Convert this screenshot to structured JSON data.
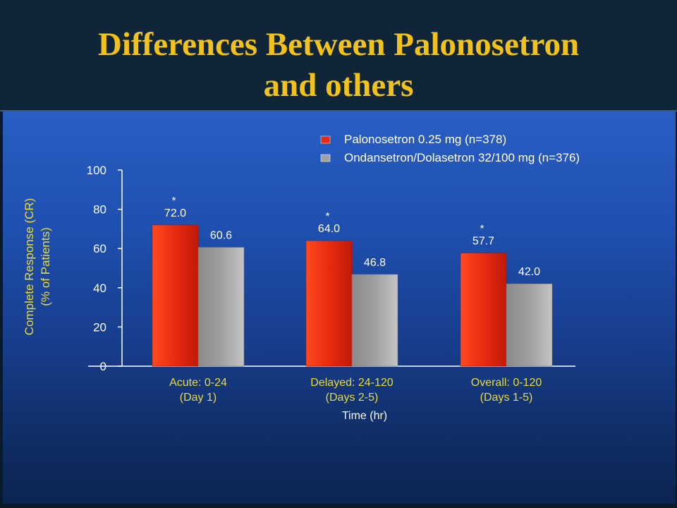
{
  "slide": {
    "title_line1": "Differences Between Palonosetron",
    "title_line2": "and others"
  },
  "colors": {
    "title": "#f2c21a",
    "ylabel": "#e8dc3a",
    "xlabel": "#e8dc3a",
    "palonosetron": "#e82a10",
    "ondansetron": "#a0a0a0"
  },
  "chart_data": {
    "type": "bar",
    "categories": [
      [
        "Acute: 0-24",
        "(Day 1)"
      ],
      [
        "Delayed: 24-120",
        "(Days 2-5)"
      ],
      [
        "Overall: 0-120",
        "(Days 1-5)"
      ]
    ],
    "series": [
      {
        "name": "Palonosetron 0.25 mg (n=378)",
        "values": [
          72.0,
          64.0,
          57.7
        ],
        "labels": [
          "72.0",
          "64.0",
          "57.7"
        ],
        "annotations": [
          "*",
          "*",
          "*"
        ]
      },
      {
        "name": "Ondansetron/Dolasetron 32/100 mg (n=376)",
        "values": [
          60.6,
          46.8,
          42.0
        ],
        "labels": [
          "60.6",
          "46.8",
          "42.0"
        ]
      }
    ],
    "ylabel_line1": "Complete Response (CR)",
    "ylabel_line2": "(% of Patients)",
    "xlabel": "Time (hr)",
    "yticks": [
      "0",
      "20",
      "40",
      "60",
      "80",
      "100"
    ],
    "ylim": [
      0,
      100
    ],
    "legend_position": "top-right",
    "grid": false
  }
}
